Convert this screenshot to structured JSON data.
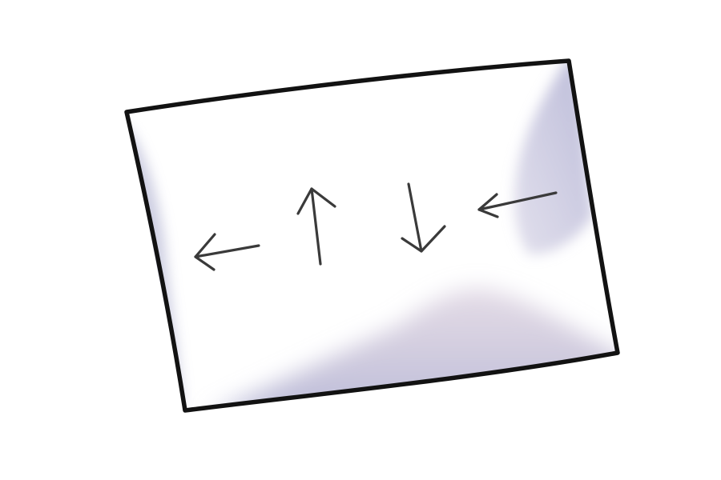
{
  "illustration": {
    "subject": "tilted-sheet-with-direction-arrows",
    "colors": {
      "background": "#ffffff",
      "sheet_fill": "#ffffff",
      "outline": "#121212",
      "arrow_stroke": "#3a3a3a",
      "shadow": "#b9b9d6",
      "shadow_warm": "#cfc0d2"
    },
    "arrows": [
      {
        "name": "left-arrow-icon",
        "direction": "left"
      },
      {
        "name": "up-arrow-icon",
        "direction": "up"
      },
      {
        "name": "down-arrow-icon",
        "direction": "down"
      },
      {
        "name": "inward-left-arrow-icon",
        "direction": "left"
      }
    ]
  }
}
